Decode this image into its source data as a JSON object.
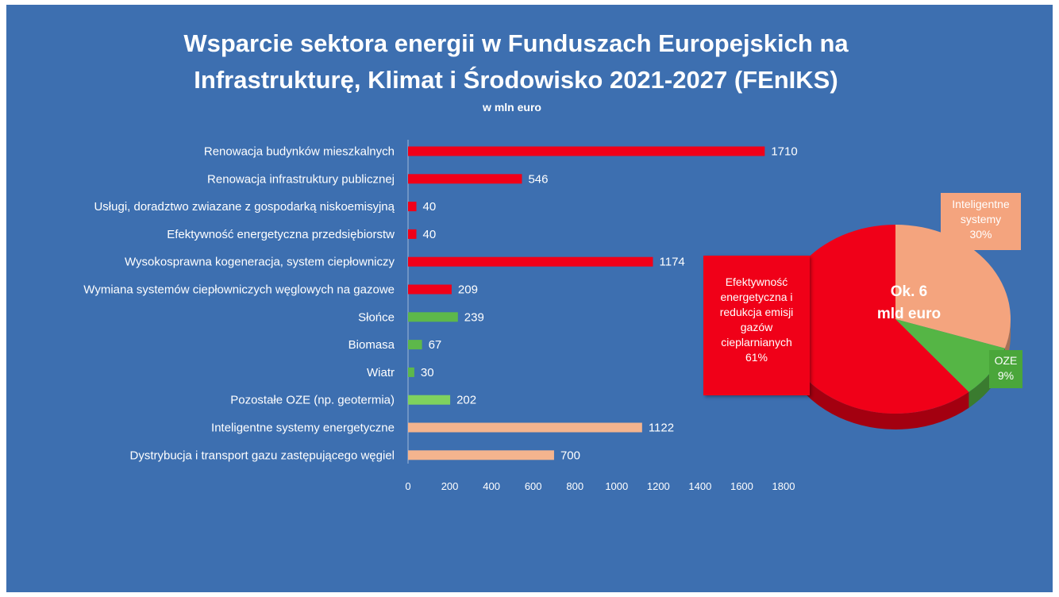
{
  "title_line1": "Wsparcie sektora energii w Funduszach Europejskich na",
  "title_line2": "Infrastrukturę, Klimat i Środowisko 2021-2027 (FEnIKS)",
  "subtitle": "w mln euro",
  "colors": {
    "background": "#3d6fb0",
    "red": "#f00018",
    "green": "#5db84a",
    "peach": "#f4b48e"
  },
  "chart_data": [
    {
      "type": "bar",
      "orientation": "horizontal",
      "xlim": [
        0,
        1800
      ],
      "ticks": [
        0,
        200,
        400,
        600,
        800,
        1000,
        1200,
        1400,
        1600,
        1800
      ],
      "categories": [
        "Renowacja budynków mieszkalnych",
        "Renowacja infrastruktury publicznej",
        "Usługi, doradztwo zwiazane z gospodarką niskoemisyjną",
        "Efektywność energetyczna przedsiębiorstw",
        "Wysokosprawna kogeneracja, system ciepłowniczy",
        "Wymiana systemów ciepłowniczych węglowych na gazowe",
        "Słońce",
        "Biomasa",
        "Wiatr",
        "Pozostałe OZE (np. geotermia)",
        "Inteligentne systemy energetyczne",
        "Dystrybucja i transport gazu zastępującego węgiel"
      ],
      "values": [
        1710,
        546,
        40,
        40,
        1174,
        209,
        239,
        67,
        30,
        202,
        1122,
        700
      ],
      "bar_colors": [
        "#f00018",
        "#f00018",
        "#f00018",
        "#f00018",
        "#f00018",
        "#f00018",
        "#5db84a",
        "#5db84a",
        "#5db84a",
        "#7fd25e",
        "#f4b48e",
        "#f4b48e"
      ]
    },
    {
      "type": "pie",
      "center_label_line1": "Ok. 6",
      "center_label_line2": "mld euro",
      "slices": [
        {
          "label_lines": [
            "Efektywność",
            "energetyczna i",
            "redukcja emisji",
            "gazów",
            "cieplarnianych"
          ],
          "percent_label": "61%",
          "value": 61,
          "color": "#f00018"
        },
        {
          "label_lines": [
            "Inteligentne",
            "systemy"
          ],
          "percent_label": "30%",
          "value": 30,
          "color": "#f4a47e"
        },
        {
          "label_lines": [
            "OZE"
          ],
          "percent_label": "9%",
          "value": 9,
          "color": "#55b545"
        }
      ]
    }
  ]
}
